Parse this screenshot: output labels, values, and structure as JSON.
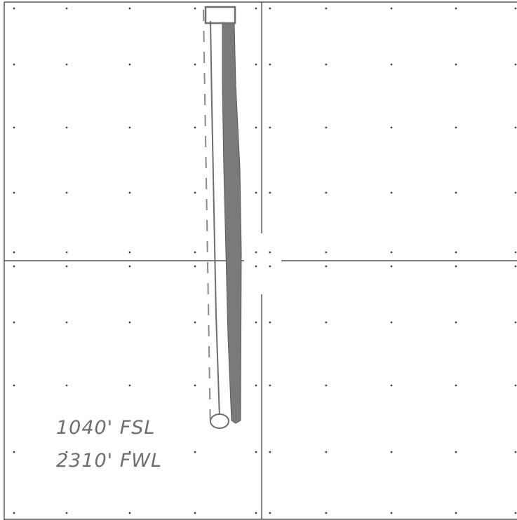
{
  "plat": {
    "grid": "quarter-section grid with 40-acre tick dots",
    "well_location": {
      "line_1": "1040' FSL",
      "line_2": "2310' FWL"
    }
  },
  "colors": {
    "paper": "#ffffff",
    "grid_line": "#333333",
    "lateral_fill": "#7a7a7a",
    "pencil": "#6e6e6e",
    "dot": "#444444"
  }
}
